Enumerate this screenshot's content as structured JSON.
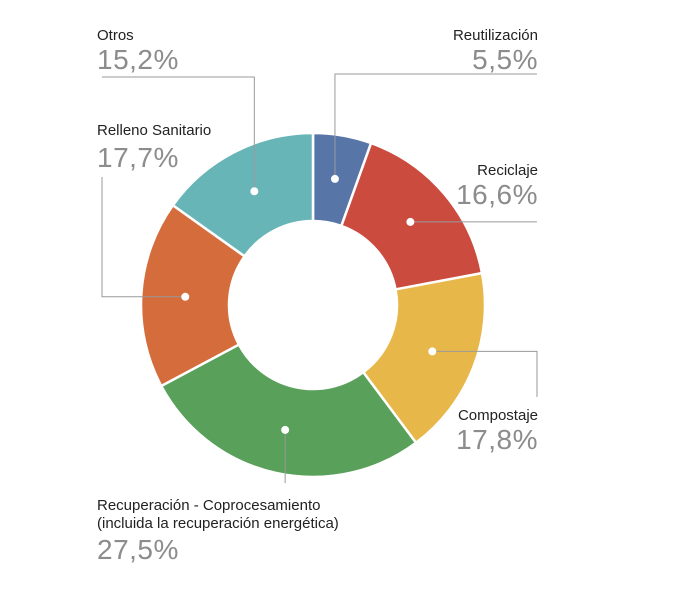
{
  "chart_data": {
    "type": "pie",
    "donut": true,
    "slices": [
      {
        "label": "Reutilización",
        "value": 5.5,
        "value_label": "5,5%",
        "color": "#5875a8"
      },
      {
        "label": "Reciclaje",
        "value": 16.6,
        "value_label": "16,6%",
        "color": "#cb4b3f"
      },
      {
        "label": "Compostaje",
        "value": 17.8,
        "value_label": "17,8%",
        "color": "#e8b74a"
      },
      {
        "label_lines": [
          "Recuperación - Coprocesamiento",
          "(incluida la recuperación energética)"
        ],
        "value": 27.5,
        "value_label": "27,5%",
        "color": "#59a05b"
      },
      {
        "label": "Relleno Sanitario",
        "value": 17.7,
        "value_label": "17,7%",
        "color": "#d46c3c"
      },
      {
        "label": "Otros",
        "value": 15.2,
        "value_label": "15,2%",
        "color": "#68b5b8"
      }
    ]
  }
}
